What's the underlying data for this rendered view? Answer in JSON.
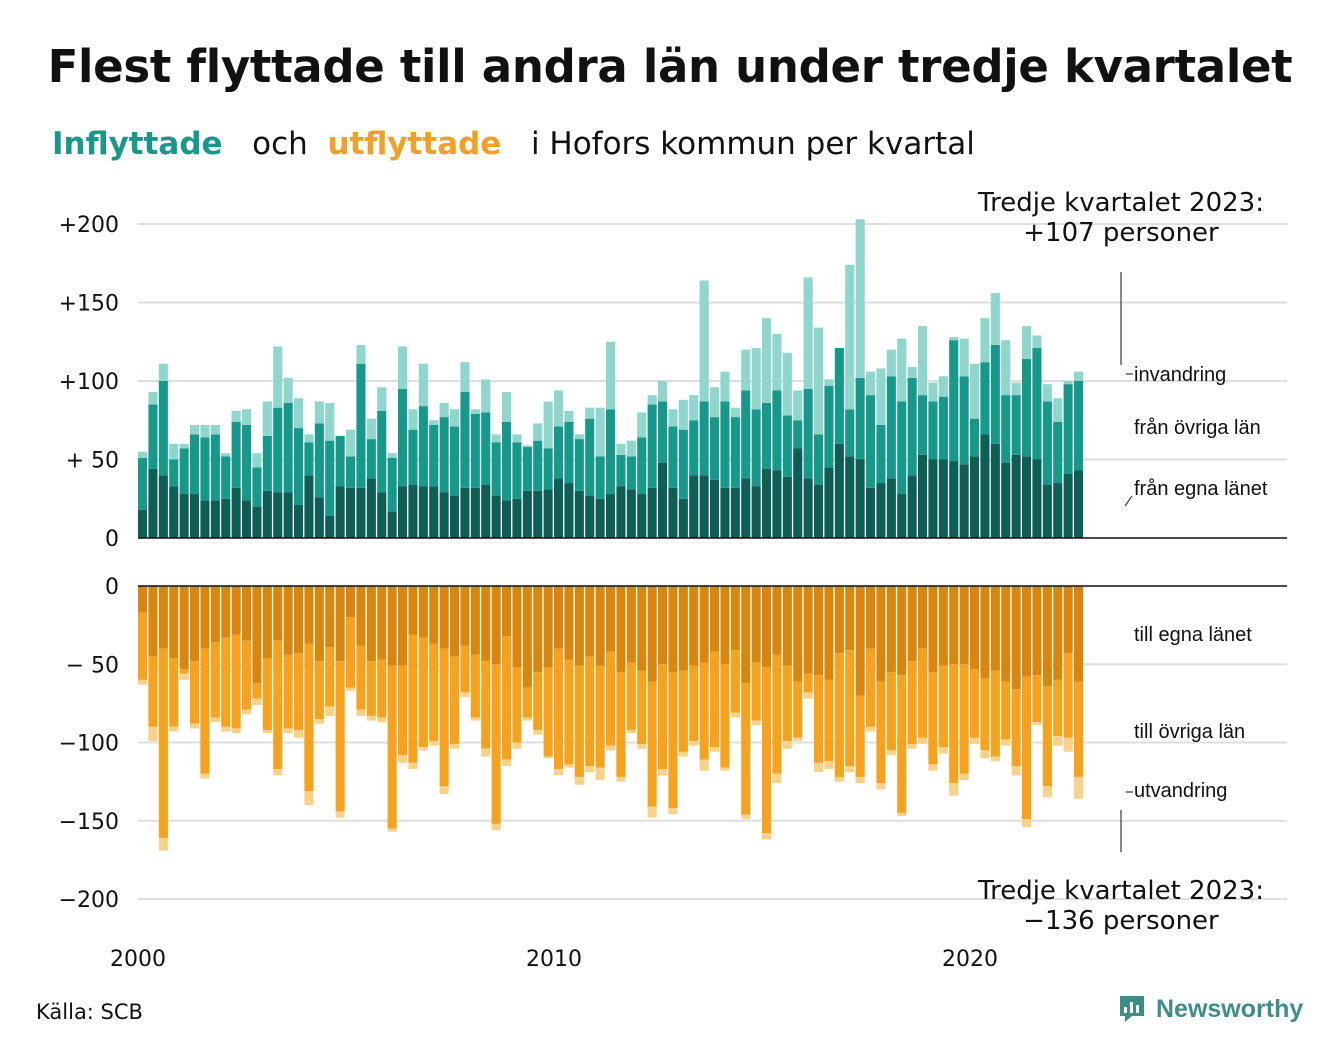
{
  "title": "Flest flyttade till andra län under tredje kvartalet",
  "subtitle": {
    "part1": "Inflyttade",
    "part2": "och",
    "part3": "utflyttade",
    "part4": "i Hofors kommun per kvartal"
  },
  "callout_top": {
    "line1": "Tredje kvartalet 2023:",
    "line2": "+107 personer"
  },
  "callout_bottom": {
    "line1": "Tredje kvartalet 2023:",
    "line2": "−136 personer"
  },
  "source": "Källa: SCB",
  "brand": "Newsworthy",
  "colors": {
    "in_own": "#0f5e55",
    "in_other": "#16998a",
    "in_immigration": "#8fd6cd",
    "out_own": "#d9860f",
    "out_other": "#f7a21d",
    "out_emigration": "#f9d289",
    "subtitle_in": "#16998a",
    "subtitle_out": "#f4a024"
  },
  "chart_data": {
    "type": "bar",
    "stacked": true,
    "x_axis_ticks": [
      "2000",
      "2010",
      "2020"
    ],
    "period_start": "2000 Q1",
    "period_end": "2023 Q3",
    "inflow_axis": {
      "ticks": [
        "0",
        "+ 50",
        "+100",
        "+150",
        "+200"
      ],
      "tick_values": [
        0,
        50,
        100,
        150,
        200
      ],
      "ylim": [
        0,
        200
      ]
    },
    "outflow_axis": {
      "ticks": [
        "0",
        "− 50",
        "−100",
        "−150",
        "−200"
      ],
      "tick_values": [
        0,
        -50,
        -100,
        -150,
        -200
      ],
      "ylim": [
        -200,
        0
      ]
    },
    "grid": true,
    "legend": {
      "in_immigration": "invandring",
      "in_other": "från övriga län",
      "in_own": "från egna länet",
      "out_own": "till egna länet",
      "out_other": "till övriga län",
      "out_emigration": "utvandring"
    },
    "inflow_series": [
      {
        "key": "in_own",
        "name": "från egna länet",
        "values": [
          18,
          44,
          40,
          33,
          28,
          28,
          24,
          24,
          25,
          32,
          24,
          20,
          30,
          29,
          29,
          21,
          40,
          26,
          14,
          33,
          32,
          32,
          38,
          29,
          17,
          33,
          34,
          33,
          33,
          29,
          27,
          32,
          32,
          34,
          27,
          24,
          25,
          30,
          30,
          31,
          38,
          35,
          30,
          27,
          25,
          28,
          33,
          31,
          28,
          32,
          48,
          32,
          25,
          40,
          40,
          37,
          32,
          32,
          38,
          33,
          44,
          43,
          39,
          57,
          38,
          34,
          45,
          60,
          52,
          50,
          32,
          35,
          38,
          28,
          40,
          53,
          50,
          50,
          49,
          47,
          52,
          66,
          60,
          48,
          53,
          52,
          50,
          34,
          35,
          41,
          43
        ]
      },
      {
        "key": "in_other",
        "name": "från övriga län",
        "values": [
          33,
          41,
          60,
          17,
          29,
          38,
          40,
          42,
          27,
          42,
          48,
          25,
          35,
          54,
          57,
          49,
          21,
          47,
          48,
          32,
          20,
          79,
          25,
          52,
          34,
          62,
          35,
          51,
          39,
          48,
          44,
          61,
          47,
          46,
          34,
          50,
          36,
          28,
          32,
          26,
          33,
          39,
          33,
          49,
          27,
          54,
          20,
          21,
          36,
          53,
          39,
          39,
          44,
          35,
          47,
          40,
          55,
          45,
          56,
          49,
          42,
          51,
          39,
          18,
          57,
          32,
          52,
          61,
          30,
          52,
          59,
          37,
          65,
          59,
          62,
          38,
          37,
          40,
          77,
          56,
          24,
          46,
          63,
          43,
          38,
          62,
          71,
          53,
          39,
          57,
          57
        ]
      },
      {
        "key": "in_immigration",
        "name": "invandring",
        "values": [
          4,
          8,
          11,
          10,
          3,
          6,
          8,
          6,
          2,
          7,
          10,
          9,
          22,
          39,
          16,
          19,
          5,
          14,
          24,
          0,
          17,
          12,
          13,
          15,
          3,
          27,
          13,
          27,
          3,
          9,
          11,
          19,
          3,
          21,
          5,
          19,
          5,
          1,
          11,
          30,
          23,
          7,
          3,
          7,
          31,
          43,
          7,
          10,
          16,
          6,
          13,
          11,
          19,
          16,
          77,
          19,
          19,
          6,
          26,
          39,
          54,
          36,
          40,
          19,
          71,
          68,
          4,
          0,
          92,
          101,
          15,
          36,
          17,
          40,
          7,
          44,
          12,
          13,
          2,
          24,
          35,
          28,
          33,
          35,
          8,
          21,
          8,
          11,
          15,
          2,
          6
        ]
      }
    ],
    "outflow_series": [
      {
        "key": "out_own",
        "name": "till egna länet",
        "values": [
          -17,
          -45,
          -40,
          -46,
          -53,
          -48,
          -40,
          -36,
          -33,
          -31,
          -35,
          -62,
          -46,
          -35,
          -44,
          -43,
          -37,
          -48,
          -39,
          -48,
          -20,
          -38,
          -48,
          -47,
          -51,
          -51,
          -31,
          -33,
          -37,
          -40,
          -45,
          -38,
          -44,
          -48,
          -50,
          -32,
          -52,
          -65,
          -55,
          -52,
          -40,
          -47,
          -51,
          -45,
          -51,
          -42,
          -55,
          -49,
          -54,
          -61,
          -50,
          -55,
          -54,
          -51,
          -49,
          -42,
          -50,
          -41,
          -62,
          -49,
          -52,
          -44,
          -51,
          -61,
          -56,
          -57,
          -60,
          -43,
          -41,
          -70,
          -40,
          -61,
          -55,
          -57,
          -48,
          -40,
          -55,
          -51,
          -50,
          -50,
          -53,
          -59,
          -54,
          -61,
          -66,
          -58,
          -57,
          -64,
          -60,
          -43,
          -61
        ]
      },
      {
        "key": "out_other",
        "name": "till övriga län",
        "values": [
          -43,
          -45,
          -121,
          -44,
          -3,
          -40,
          -80,
          -48,
          -57,
          -60,
          -44,
          -10,
          -46,
          -82,
          -47,
          -49,
          -94,
          -37,
          -38,
          -96,
          -45,
          -41,
          -35,
          -37,
          -104,
          -57,
          -82,
          -70,
          -62,
          -88,
          -56,
          -30,
          -40,
          -56,
          -102,
          -79,
          -48,
          -19,
          -37,
          -57,
          -77,
          -67,
          -71,
          -70,
          -65,
          -60,
          -67,
          -43,
          -47,
          -80,
          -67,
          -87,
          -52,
          -48,
          -62,
          -61,
          -66,
          -40,
          -84,
          -37,
          -106,
          -76,
          -48,
          -36,
          -12,
          -56,
          -52,
          -79,
          -74,
          -52,
          -50,
          -65,
          -50,
          -88,
          -53,
          -57,
          -59,
          -52,
          -76,
          -70,
          -44,
          -46,
          -55,
          -37,
          -49,
          -91,
          -30,
          -64,
          -36,
          -54,
          -61
        ]
      },
      {
        "key": "out_emigration",
        "name": "utvandring",
        "values": [
          -3,
          -9,
          -8,
          -3,
          -4,
          -3,
          -3,
          -3,
          -3,
          -3,
          -3,
          -4,
          -2,
          -4,
          -3,
          -5,
          -9,
          -3,
          -6,
          -4,
          -2,
          -4,
          -3,
          -3,
          -2,
          -5,
          -4,
          -2,
          -3,
          -5,
          -3,
          -3,
          -2,
          -5,
          -4,
          -4,
          -4,
          -2,
          -3,
          -1,
          -4,
          -2,
          -5,
          -4,
          -8,
          -3,
          -3,
          -2,
          -3,
          -7,
          -4,
          -4,
          -3,
          -3,
          -7,
          -3,
          -2,
          -3,
          -3,
          -3,
          -4,
          -6,
          -5,
          -2,
          -4,
          -6,
          -5,
          -3,
          -4,
          -4,
          -3,
          -4,
          -3,
          -2,
          -3,
          -4,
          -4,
          -4,
          -8,
          -4,
          -4,
          -5,
          -3,
          -4,
          -6,
          -5,
          -2,
          -7,
          -6,
          -9,
          -14
        ]
      }
    ]
  }
}
